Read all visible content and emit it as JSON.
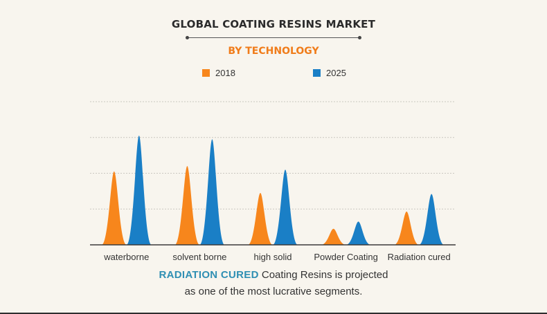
{
  "header": {
    "title": "GLOBAL COATING RESINS MARKET",
    "subtitle": "BY TECHNOLOGY"
  },
  "colors": {
    "series_2018": "#f7861c",
    "series_2025": "#1a7fc6",
    "subtitle": "#f07c1a",
    "highlight": "#2f8fb3",
    "background": "#f8f5ee"
  },
  "chart_data": {
    "type": "area",
    "title": "GLOBAL COATING RESINS MARKET",
    "subtitle": "BY TECHNOLOGY",
    "categories": [
      "waterborne",
      "solvent borne",
      "high solid",
      "Powder Coating",
      "Radiation cured"
    ],
    "series": [
      {
        "name": "2018",
        "values": [
          2.05,
          2.2,
          1.45,
          0.45,
          0.93
        ]
      },
      {
        "name": "2025",
        "values": [
          3.05,
          2.95,
          2.1,
          0.65,
          1.42
        ]
      }
    ],
    "ylim": [
      0,
      4
    ],
    "grid": true,
    "legend_position": "top-center",
    "shape": "peak"
  },
  "footer": {
    "highlight": "RADIATION CURED",
    "line1_rest": " Coating Resins is projected",
    "line2": "as one of the most lucrative segments."
  }
}
